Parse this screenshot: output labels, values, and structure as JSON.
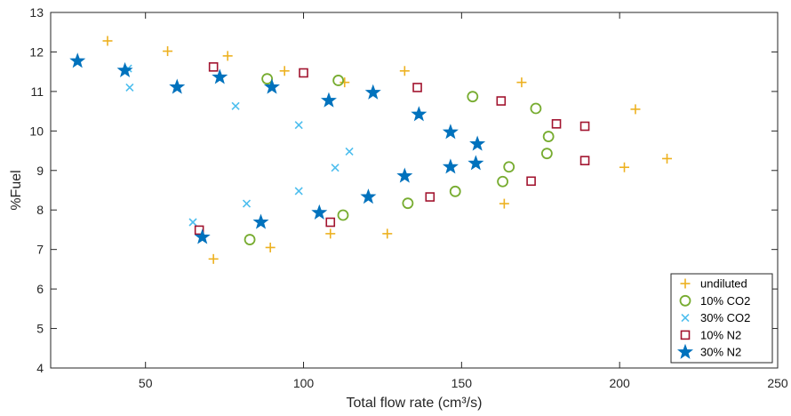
{
  "chart_data": {
    "type": "scatter",
    "title": "",
    "xlabel": "Total flow rate (cm³/s)",
    "ylabel": "%Fuel",
    "xlim": [
      20,
      250
    ],
    "ylim": [
      4,
      13
    ],
    "xticks": [
      50,
      100,
      150,
      200,
      250
    ],
    "yticks": [
      4,
      5,
      6,
      7,
      8,
      9,
      10,
      11,
      12,
      13
    ],
    "grid": false,
    "legend_position": "bottom-right",
    "series": [
      {
        "name": "undiluted",
        "marker": "plus",
        "color": "#EDB120",
        "points": [
          [
            38,
            12.28
          ],
          [
            57,
            12.02
          ],
          [
            76,
            11.9
          ],
          [
            94,
            11.52
          ],
          [
            113,
            11.23
          ],
          [
            132,
            11.52
          ],
          [
            169,
            11.23
          ],
          [
            205,
            10.55
          ],
          [
            215,
            9.3
          ],
          [
            201.5,
            9.08
          ],
          [
            163.5,
            8.16
          ],
          [
            126.5,
            7.4
          ],
          [
            108.5,
            7.4
          ],
          [
            89.5,
            7.05
          ],
          [
            71.5,
            6.76
          ]
        ]
      },
      {
        "name": "10% CO2",
        "marker": "circle",
        "color": "#77AC30",
        "points": [
          [
            88.5,
            11.32
          ],
          [
            111,
            11.28
          ],
          [
            153.5,
            10.87
          ],
          [
            173.5,
            10.57
          ],
          [
            177.5,
            9.86
          ],
          [
            177,
            9.43
          ],
          [
            165,
            9.09
          ],
          [
            163,
            8.72
          ],
          [
            148,
            8.47
          ],
          [
            133,
            8.17
          ],
          [
            112.5,
            7.87
          ],
          [
            83,
            7.25
          ]
        ]
      },
      {
        "name": "30% CO2",
        "marker": "x",
        "color": "#4DBEEE",
        "points": [
          [
            44.5,
            11.58
          ],
          [
            45,
            11.1
          ],
          [
            78.5,
            10.63
          ],
          [
            98.5,
            10.15
          ],
          [
            114.5,
            9.48
          ],
          [
            110,
            9.07
          ],
          [
            98.5,
            8.48
          ],
          [
            82,
            8.16
          ],
          [
            65,
            7.69
          ]
        ]
      },
      {
        "name": "10% N2",
        "marker": "square",
        "color": "#A2142F",
        "points": [
          [
            71.5,
            11.62
          ],
          [
            100,
            11.47
          ],
          [
            136,
            11.1
          ],
          [
            162.5,
            10.76
          ],
          [
            180,
            10.18
          ],
          [
            189,
            10.12
          ],
          [
            189,
            9.25
          ],
          [
            172,
            8.73
          ],
          [
            140,
            8.33
          ],
          [
            108.5,
            7.69
          ],
          [
            67,
            7.49
          ]
        ]
      },
      {
        "name": "30% N2",
        "marker": "star",
        "color": "#0072BD",
        "points": [
          [
            28.5,
            11.77
          ],
          [
            43.5,
            11.53
          ],
          [
            60,
            11.11
          ],
          [
            73.5,
            11.36
          ],
          [
            90,
            11.11
          ],
          [
            108,
            10.77
          ],
          [
            122,
            10.97
          ],
          [
            136.5,
            10.42
          ],
          [
            146.5,
            9.97
          ],
          [
            155,
            9.67
          ],
          [
            154.5,
            9.18
          ],
          [
            146.5,
            9.09
          ],
          [
            132,
            8.86
          ],
          [
            120.5,
            8.33
          ],
          [
            105,
            7.93
          ],
          [
            86.5,
            7.69
          ],
          [
            68,
            7.31
          ]
        ]
      }
    ]
  }
}
